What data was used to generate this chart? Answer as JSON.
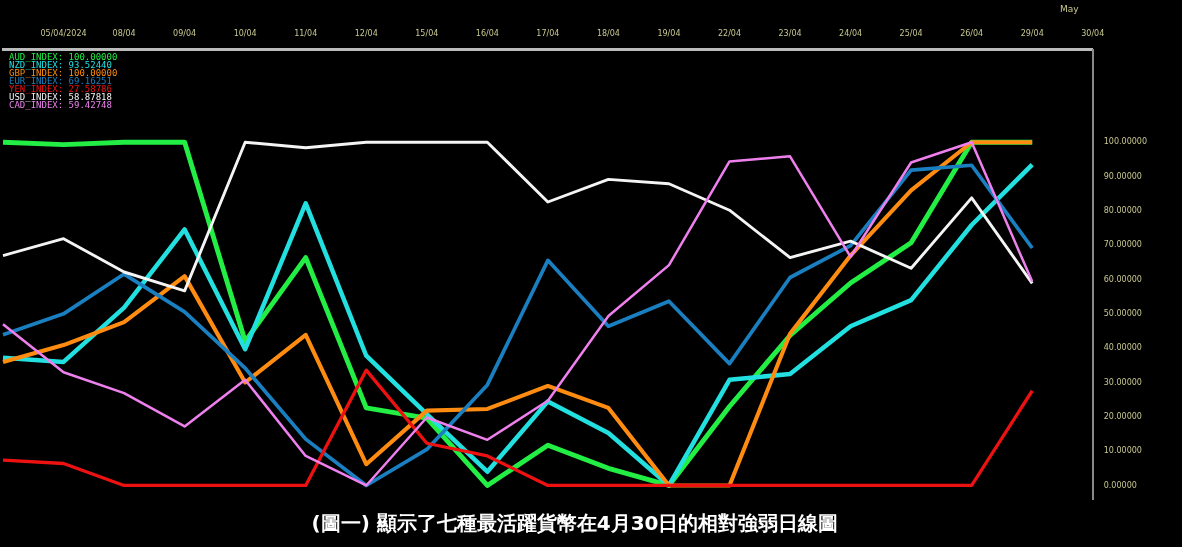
{
  "chart_data": {
    "type": "line",
    "annotations": [
      "May",
      "(圖一) 顯示了七種最活躍貨幣在4月30日的相對強弱日線圖"
    ],
    "categories": [
      null,
      "05/04/2024",
      "08/04",
      "09/04",
      "10/04",
      "11/04",
      "12/04",
      "15/04",
      "16/04",
      "17/04",
      "18/04",
      "19/04",
      "22/04",
      "23/04",
      "24/04",
      "25/04",
      "26/04",
      "29/04",
      "30/04"
    ],
    "series": [
      {
        "name": "AUD_INDEX: 100.00000",
        "color": "#22ee44",
        "values": [
          100,
          99.3,
          100,
          100,
          42,
          66.4,
          22.6,
          19.6,
          0,
          11.7,
          5,
          0,
          23,
          43.7,
          59,
          70.7,
          100,
          100,
          null
        ]
      },
      {
        "name": "NZD_INDEX: 93.52440",
        "color": "#22e0e0",
        "values": [
          37.2,
          36,
          51.8,
          74.6,
          39.7,
          82.2,
          37.8,
          20.8,
          4,
          24.5,
          15.3,
          0,
          30.8,
          32.5,
          46.4,
          54,
          75.9,
          93.5,
          null
        ]
      },
      {
        "name": "GBP_INDEX: 100.00000",
        "color": "#ff8c10",
        "values": [
          36,
          40.9,
          47.6,
          61,
          30,
          43.9,
          6.2,
          21.8,
          22.3,
          29,
          22.6,
          0,
          0,
          44.2,
          67,
          86,
          100,
          100,
          null
        ]
      },
      {
        "name": "EUR_INDEX: 69.16251",
        "color": "#1a7fc0",
        "values": [
          43.9,
          50,
          61.6,
          50.6,
          34.2,
          13.5,
          0,
          10.5,
          29.3,
          65.6,
          46.4,
          53.7,
          35.5,
          60.6,
          69.9,
          91.9,
          93.3,
          69.2,
          null
        ]
      },
      {
        "name": "YEN_INDEX: 27.58786",
        "color": "#ee1111",
        "values": [
          7.4,
          6.4,
          0,
          0,
          0,
          0,
          33.6,
          12.3,
          8.6,
          0,
          0,
          0,
          0,
          0,
          0,
          0,
          0,
          27.6,
          null
        ]
      },
      {
        "name": "USD_INDEX: 58.87818",
        "color": "#f4f4f4",
        "values": [
          67,
          71.9,
          62.2,
          56.7,
          100,
          98.4,
          100,
          100,
          100,
          82.6,
          89.2,
          87.9,
          80.2,
          66.4,
          71.2,
          63.3,
          83.8,
          58.9,
          null
        ]
      },
      {
        "name": "CAD_INDEX: 59.42748",
        "color": "#ee80ee",
        "values": [
          47,
          33,
          26.9,
          17.2,
          30.8,
          8.6,
          0,
          19.8,
          13.3,
          24.7,
          49.4,
          64.2,
          94.4,
          95.9,
          66.6,
          94.1,
          100,
          59.4,
          null
        ]
      }
    ],
    "ylim": [
      -4,
      127
    ],
    "yticks": [
      {
        "value": 0,
        "label": "0.00000"
      },
      {
        "value": 10,
        "label": "10.00000"
      },
      {
        "value": 20,
        "label": "20.00000"
      },
      {
        "value": 30,
        "label": "30.00000"
      },
      {
        "value": 40,
        "label": "40.00000"
      },
      {
        "value": 50,
        "label": "50.00000"
      },
      {
        "value": 60,
        "label": "60.00000"
      },
      {
        "value": 70,
        "label": "70.00000"
      },
      {
        "value": 80,
        "label": "80.00000"
      },
      {
        "value": 90,
        "label": "90.00000"
      },
      {
        "value": 100,
        "label": "100.00000"
      }
    ],
    "legend": "top left",
    "marker": "none"
  }
}
